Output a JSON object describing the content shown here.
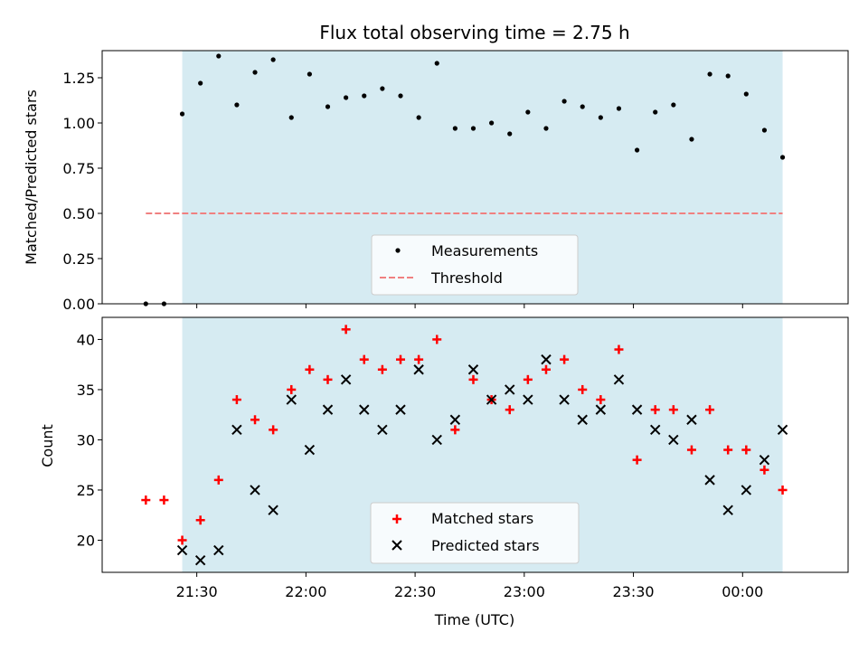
{
  "chart_data": [
    {
      "type": "scatter",
      "title": "Flux total observing time = 2.75 h",
      "xlabel": "",
      "ylabel": "Matched/Predicted stars",
      "ylim": [
        0,
        1.4
      ],
      "yticks": [
        "0.00",
        "0.25",
        "0.50",
        "0.75",
        "1.00",
        "1.25"
      ],
      "ytick_values": [
        0,
        0.25,
        0.5,
        0.75,
        1.0,
        1.25
      ],
      "xlim": [
        "21:04",
        "00:29"
      ],
      "xticks": [
        "21:30",
        "22:00",
        "22:30",
        "23:00",
        "23:30",
        "00:00"
      ],
      "grid": false,
      "legend_position": "lower-center",
      "shaded_region": {
        "start": "21:26",
        "end": "00:11",
        "color": "#add8e6"
      },
      "series": [
        {
          "name": "Measurements",
          "marker": "dot",
          "color": "#000000",
          "x": [
            "21:16",
            "21:21",
            "21:26",
            "21:31",
            "21:36",
            "21:41",
            "21:46",
            "21:51",
            "21:56",
            "22:01",
            "22:06",
            "22:11",
            "22:16",
            "22:21",
            "22:26",
            "22:31",
            "22:36",
            "22:41",
            "22:46",
            "22:51",
            "22:56",
            "23:01",
            "23:06",
            "23:11",
            "23:16",
            "23:21",
            "23:26",
            "23:31",
            "23:36",
            "23:41",
            "23:46",
            "23:51",
            "23:56",
            "24:01",
            "24:06",
            "24:11"
          ],
          "y": [
            0.0,
            0.0,
            1.05,
            1.22,
            1.37,
            1.1,
            1.28,
            1.35,
            1.03,
            1.27,
            1.09,
            1.14,
            1.15,
            1.19,
            1.15,
            1.03,
            1.33,
            0.97,
            0.97,
            1.0,
            0.94,
            1.06,
            0.97,
            1.12,
            1.09,
            1.03,
            1.08,
            0.85,
            1.06,
            1.1,
            0.91,
            1.27,
            1.26,
            1.16,
            0.96,
            0.81
          ]
        },
        {
          "name": "Threshold",
          "marker": "dashed-line",
          "color": "#f08080",
          "x": [
            "21:16",
            "00:11"
          ],
          "y": [
            0.5,
            0.5
          ]
        }
      ]
    },
    {
      "type": "scatter",
      "title": "",
      "xlabel": "Time (UTC)",
      "ylabel": "Count",
      "ylim": [
        16.8,
        42.2
      ],
      "yticks": [
        "20",
        "25",
        "30",
        "35",
        "40"
      ],
      "ytick_values": [
        20,
        25,
        30,
        35,
        40
      ],
      "xlim": [
        "21:04",
        "00:29"
      ],
      "xticks": [
        "21:30",
        "22:00",
        "22:30",
        "23:00",
        "23:30",
        "00:00"
      ],
      "grid": false,
      "legend_position": "lower-center",
      "shaded_region": {
        "start": "21:26",
        "end": "00:11",
        "color": "#add8e6"
      },
      "series": [
        {
          "name": "Matched stars",
          "marker": "plus",
          "color": "#ff0000",
          "x": [
            "21:16",
            "21:21",
            "21:26",
            "21:31",
            "21:36",
            "21:41",
            "21:46",
            "21:51",
            "21:56",
            "22:01",
            "22:06",
            "22:11",
            "22:16",
            "22:21",
            "22:26",
            "22:31",
            "22:36",
            "22:41",
            "22:46",
            "22:51",
            "22:56",
            "23:01",
            "23:06",
            "23:11",
            "23:16",
            "23:21",
            "23:26",
            "23:31",
            "23:36",
            "23:41",
            "23:46",
            "23:51",
            "23:56",
            "24:01",
            "24:06",
            "24:11"
          ],
          "y": [
            24,
            24,
            20,
            22,
            26,
            34,
            32,
            31,
            35,
            37,
            36,
            41,
            38,
            37,
            38,
            38,
            40,
            31,
            36,
            34,
            33,
            36,
            37,
            38,
            35,
            34,
            39,
            28,
            33,
            33,
            29,
            33,
            29,
            29,
            27,
            25
          ]
        },
        {
          "name": "Predicted stars",
          "marker": "x",
          "color": "#000000",
          "x": [
            "21:26",
            "21:31",
            "21:36",
            "21:41",
            "21:46",
            "21:51",
            "21:56",
            "22:01",
            "22:06",
            "22:11",
            "22:16",
            "22:21",
            "22:26",
            "22:31",
            "22:36",
            "22:41",
            "22:46",
            "22:51",
            "22:56",
            "23:01",
            "23:06",
            "23:11",
            "23:16",
            "23:21",
            "23:26",
            "23:31",
            "23:36",
            "23:41",
            "23:46",
            "23:51",
            "23:56",
            "24:01",
            "24:06",
            "24:11"
          ],
          "y": [
            19,
            18,
            19,
            31,
            25,
            23,
            34,
            29,
            33,
            36,
            33,
            31,
            33,
            37,
            30,
            32,
            37,
            34,
            35,
            34,
            38,
            34,
            32,
            33,
            36,
            33,
            31,
            30,
            32,
            26,
            23,
            25,
            28,
            31
          ]
        }
      ]
    }
  ]
}
